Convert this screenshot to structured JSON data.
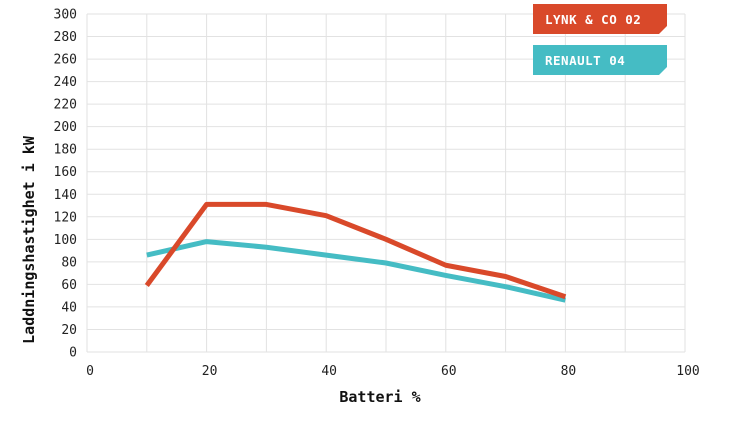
{
  "chart_data": {
    "type": "line",
    "title": "",
    "xlabel": "Batteri %",
    "ylabel": "Laddningshastighet i kW",
    "xlim": [
      0,
      100
    ],
    "ylim": [
      0,
      300
    ],
    "x_ticks": [
      0,
      20,
      40,
      60,
      80,
      100
    ],
    "y_ticks": [
      0,
      20,
      40,
      60,
      80,
      100,
      120,
      140,
      160,
      180,
      200,
      220,
      240,
      260,
      280,
      300
    ],
    "grid": true,
    "legend_position": "top-right",
    "series": [
      {
        "name": "LYNK & CO 02",
        "color": "#d9492a",
        "x": [
          10,
          20,
          30,
          40,
          50,
          60,
          70,
          80
        ],
        "values": [
          59,
          131,
          131,
          121,
          100,
          77,
          67,
          49
        ]
      },
      {
        "name": "RENAULT 04",
        "color": "#45bcc4",
        "x": [
          10,
          20,
          30,
          40,
          50,
          60,
          70,
          80
        ],
        "values": [
          86,
          98,
          93,
          86,
          79,
          68,
          58,
          46
        ]
      }
    ]
  }
}
